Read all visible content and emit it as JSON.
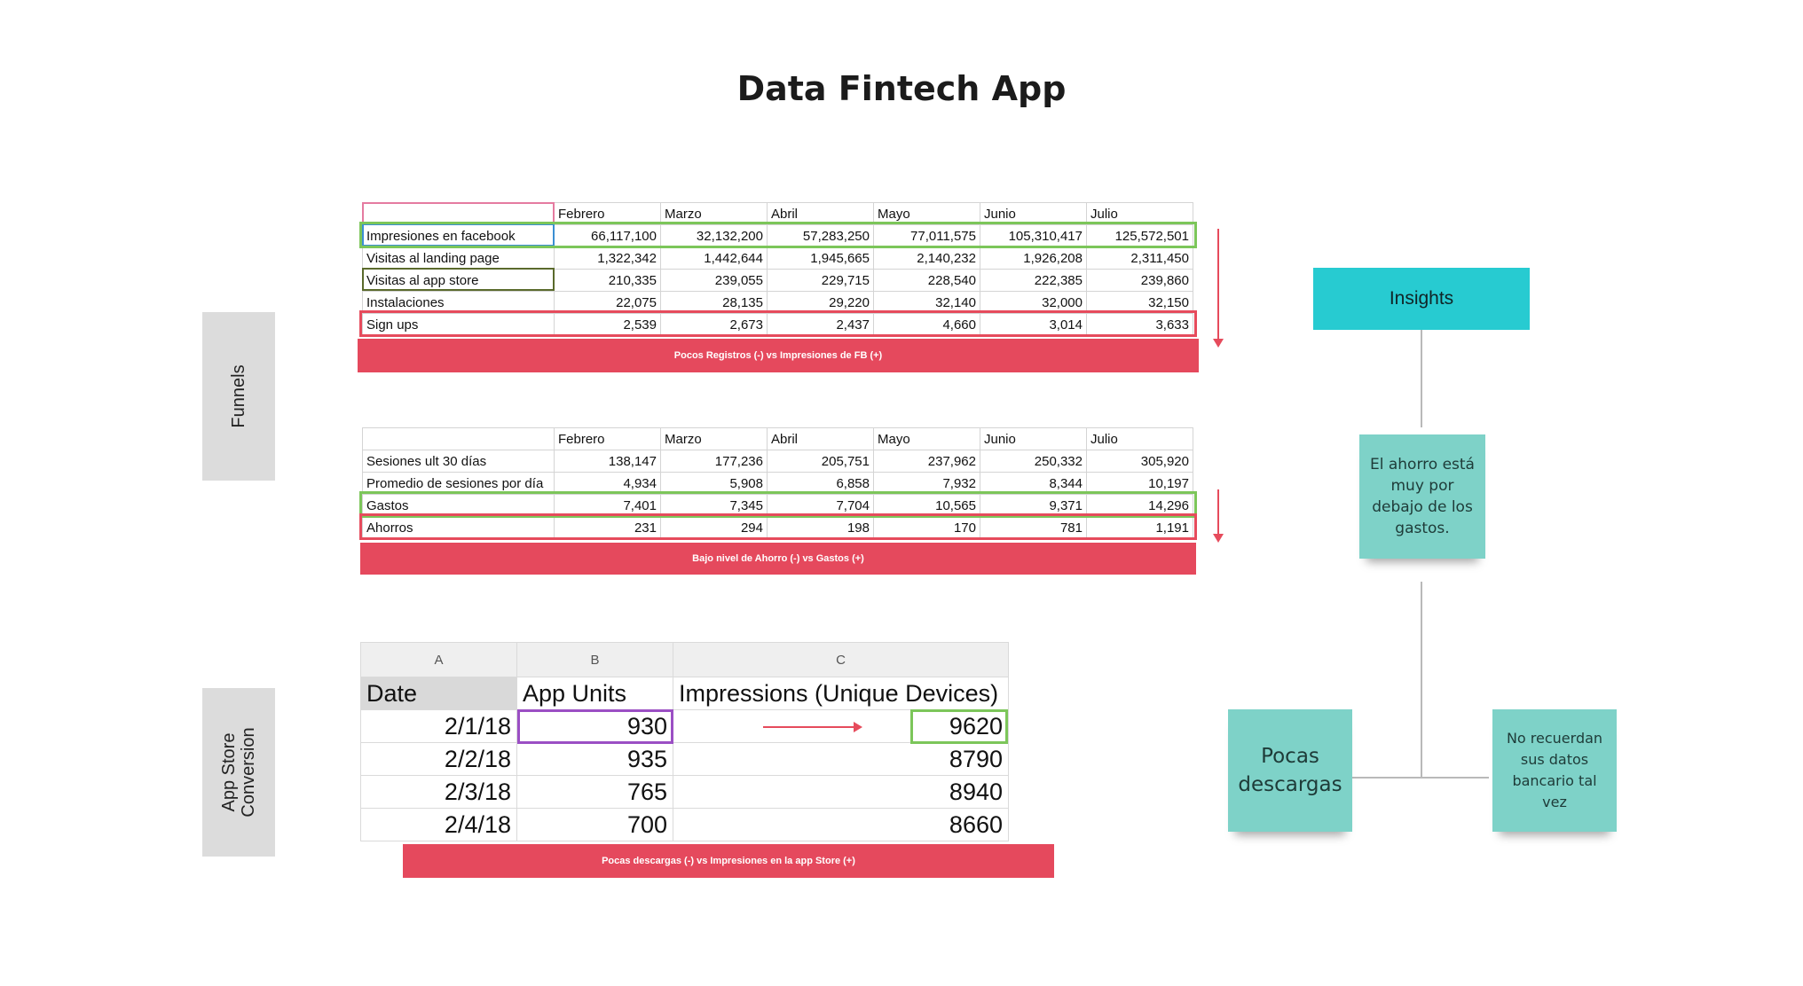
{
  "title": "Data Fintech App",
  "side_labels": {
    "funnels": "Funnels",
    "appstore": "App Store Conversion"
  },
  "table1": {
    "months": [
      "Febrero",
      "Marzo",
      "Abril",
      "Mayo",
      "Junio",
      "Julio"
    ],
    "rows": [
      {
        "label": "Impresiones en facebook",
        "values": [
          "66,117,100",
          "32,132,200",
          "57,283,250",
          "77,011,575",
          "105,310,417",
          "125,572,501"
        ]
      },
      {
        "label": "Visitas al landing page",
        "values": [
          "1,322,342",
          "1,442,644",
          "1,945,665",
          "2,140,232",
          "1,926,208",
          "2,311,450"
        ]
      },
      {
        "label": "Visitas al app store",
        "values": [
          "210,335",
          "239,055",
          "229,715",
          "228,540",
          "222,385",
          "239,860"
        ]
      },
      {
        "label": "Instalaciones",
        "values": [
          "22,075",
          "28,135",
          "29,220",
          "32,140",
          "32,000",
          "32,150"
        ]
      },
      {
        "label": "Sign ups",
        "values": [
          "2,539",
          "2,673",
          "2,437",
          "4,660",
          "3,014",
          "3,633"
        ]
      }
    ],
    "band": "Pocos Registros (-) vs Impresiones de FB (+)"
  },
  "table2": {
    "months": [
      "Febrero",
      "Marzo",
      "Abril",
      "Mayo",
      "Junio",
      "Julio"
    ],
    "rows": [
      {
        "label": "Sesiones ult 30 días",
        "values": [
          "138,147",
          "177,236",
          "205,751",
          "237,962",
          "250,332",
          "305,920"
        ]
      },
      {
        "label": "Promedio de sesiones por día",
        "values": [
          "4,934",
          "5,908",
          "6,858",
          "7,932",
          "8,344",
          "10,197"
        ]
      },
      {
        "label": "Gastos",
        "values": [
          "7,401",
          "7,345",
          "7,704",
          "10,565",
          "9,371",
          "14,296"
        ]
      },
      {
        "label": "Ahorros",
        "values": [
          "231",
          "294",
          "198",
          "170",
          "781",
          "1,191"
        ]
      }
    ],
    "band": "Bajo nivel de Ahorro (-) vs Gastos (+)"
  },
  "table3": {
    "col_letters": [
      "A",
      "B",
      "C"
    ],
    "headers": [
      "Date",
      "App Units",
      "Impressions (Unique Devices)"
    ],
    "rows": [
      {
        "date": "2/1/18",
        "units": "930",
        "impressions": "9620"
      },
      {
        "date": "2/2/18",
        "units": "935",
        "impressions": "8790"
      },
      {
        "date": "2/3/18",
        "units": "765",
        "impressions": "8940"
      },
      {
        "date": "2/4/18",
        "units": "700",
        "impressions": "8660"
      }
    ],
    "band": "Pocas descargas (-) vs Impresiones en la app Store (+)"
  },
  "insights": {
    "title": "Insights",
    "note_main": "El ahorro está muy por debajo de los gastos.",
    "note_left": "Pocas descargas",
    "note_right": "No recuerdan sus datos bancario tal vez"
  },
  "colors": {
    "accent_red": "#e5495d",
    "highlight_green": "#7cc65a",
    "insights_cyan": "#27cbd1",
    "sticky_teal": "#7ed2c8"
  }
}
